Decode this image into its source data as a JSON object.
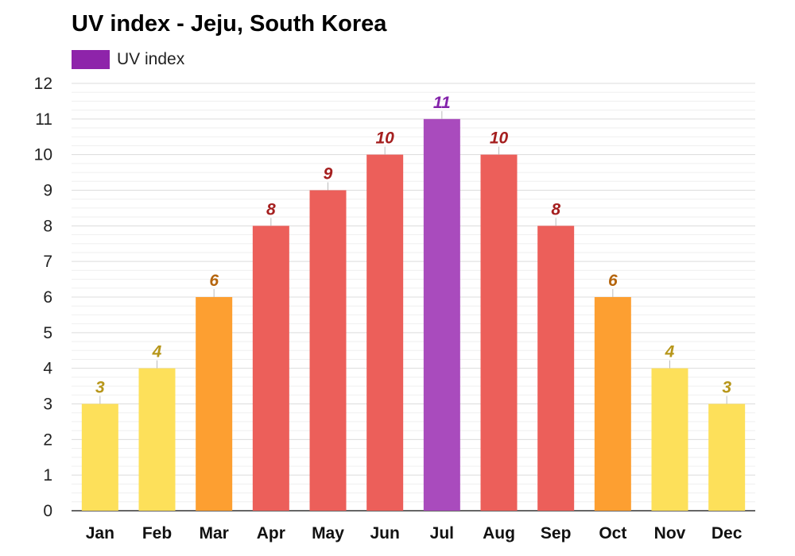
{
  "chart_data": {
    "type": "bar",
    "title": "UV index - Jeju, South Korea",
    "categories": [
      "Jan",
      "Feb",
      "Mar",
      "Apr",
      "May",
      "Jun",
      "Jul",
      "Aug",
      "Sep",
      "Oct",
      "Nov",
      "Dec"
    ],
    "series": [
      {
        "name": "UV index",
        "values": [
          3,
          4,
          6,
          8,
          9,
          10,
          11,
          10,
          8,
          6,
          4,
          3
        ]
      }
    ],
    "value_labels": [
      "3",
      "4",
      "6",
      "8",
      "9",
      "10",
      "11",
      "10",
      "8",
      "6",
      "4",
      "3"
    ],
    "y_ticks": [
      "0",
      "1",
      "2",
      "3",
      "4",
      "5",
      "6",
      "7",
      "8",
      "9",
      "10",
      "11",
      "12"
    ],
    "ylim": [
      0,
      12
    ],
    "grid": true,
    "legend_position": "top-left",
    "colors": {
      "legend": "#8e24aa",
      "low": "#fde05a",
      "moderate": "#fd9f31",
      "high": "#ec5f5a",
      "extreme": "#a94bbd",
      "label_low": "#b7961a",
      "label_moderate": "#b5650d",
      "label_high": "#a51f1f",
      "label_extreme": "#8322aa"
    }
  }
}
